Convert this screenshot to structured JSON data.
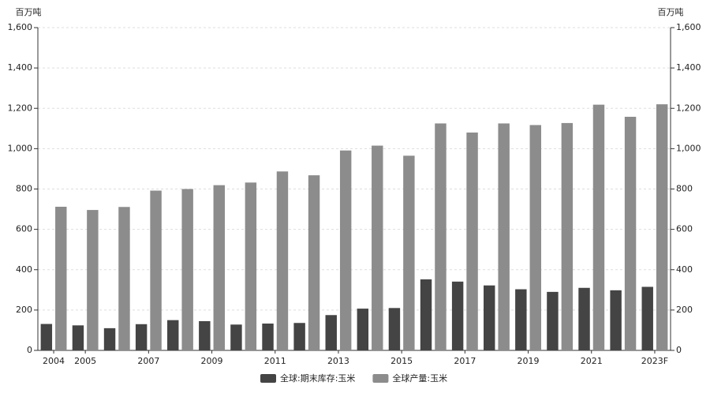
{
  "chart_data": {
    "type": "bar",
    "y_label": "百万吨",
    "y2_label": "百万吨",
    "categories": [
      "2004",
      "2005",
      null,
      "2007",
      null,
      "2009",
      null,
      "2011",
      null,
      "2013",
      null,
      "2015",
      null,
      "2017",
      null,
      "2019",
      null,
      "2021",
      null,
      "2023F"
    ],
    "series": [
      {
        "name": "全球:期末库存:玉米",
        "color": "#444444",
        "values": [
          131,
          124,
          110,
          130,
          150,
          145,
          128,
          133,
          136,
          175,
          207,
          210,
          352,
          341,
          322,
          303,
          290,
          310,
          298,
          315
        ]
      },
      {
        "name": "全球产量:玉米",
        "color": "#8c8c8c",
        "values": [
          712,
          696,
          711,
          792,
          800,
          819,
          832,
          887,
          868,
          991,
          1015,
          965,
          1125,
          1080,
          1125,
          1117,
          1127,
          1218,
          1158,
          1220
        ]
      }
    ],
    "ylim": [
      0,
      1600
    ],
    "yticks": [
      0,
      200,
      400,
      600,
      800,
      {
        "value": 1000,
        "label": "1,000"
      },
      {
        "value": 1200,
        "label": "1,200"
      },
      {
        "value": 1400,
        "label": "1,400"
      },
      {
        "value": 1600,
        "label": "1,600"
      }
    ],
    "y2lim": [
      0,
      1600
    ],
    "y2ticks": [
      0,
      200,
      400,
      600,
      800,
      {
        "value": 1000,
        "label": "1,000"
      },
      {
        "value": 1200,
        "label": "1,200"
      },
      {
        "value": 1400,
        "label": "1,400"
      },
      {
        "value": 1600,
        "label": "1,600"
      }
    ],
    "grid": true,
    "legend": "bottom"
  }
}
